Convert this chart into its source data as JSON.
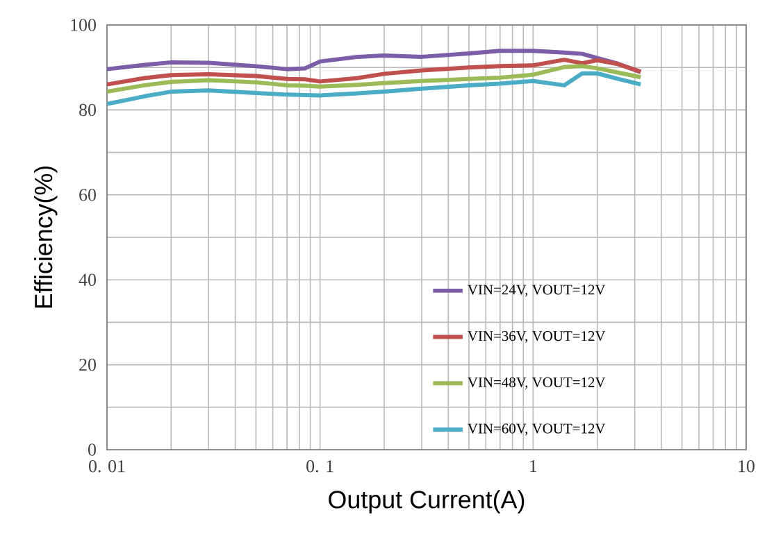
{
  "chart_data": {
    "type": "line",
    "xlabel": "Output Current(A)",
    "ylabel": "Efficiency(%)",
    "log": "x",
    "xlim": [
      0.01,
      10
    ],
    "xticks": [
      {
        "value": 0.01,
        "label": "0. 01"
      },
      {
        "value": 0.1,
        "label": "0. 1"
      },
      1,
      10
    ],
    "ylim": [
      0,
      100
    ],
    "yticks": [
      0,
      {
        "value": 10,
        "label": null
      },
      20,
      {
        "value": 30,
        "label": null
      },
      40,
      {
        "value": 50,
        "label": null
      },
      60,
      {
        "value": 70,
        "label": null
      },
      80,
      {
        "value": 90,
        "label": null
      },
      100
    ],
    "grid": true,
    "legend": "bottom right",
    "marker": "none",
    "line_style": "solid",
    "x": [
      0.01,
      0.015,
      0.02,
      0.03,
      0.05,
      0.07,
      0.085,
      0.1,
      0.15,
      0.2,
      0.3,
      0.5,
      0.7,
      1,
      1.4,
      1.7,
      2,
      2.5,
      3.2
    ],
    "series": [
      {
        "name": "VIN=24V, VOUT=12V",
        "color": "#7b5ea7",
        "values": [
          89.6,
          90.6,
          91.2,
          91.1,
          90.3,
          89.6,
          89.8,
          91.4,
          92.5,
          92.8,
          92.5,
          93.3,
          93.9,
          93.9,
          93.5,
          93.2,
          92.2,
          90.9,
          88.9
        ]
      },
      {
        "name": "VIN=36V, VOUT=12V",
        "color": "#c0504d",
        "values": [
          86,
          87.5,
          88.2,
          88.4,
          88,
          87.3,
          87.2,
          86.7,
          87.5,
          88.5,
          89.3,
          90,
          90.3,
          90.5,
          91.8,
          91,
          91.7,
          90.8,
          89
        ]
      },
      {
        "name": "VIN=48V, VOUT=12V",
        "color": "#9bbb59",
        "values": [
          84.3,
          85.8,
          86.6,
          87,
          86.5,
          85.8,
          85.7,
          85.5,
          85.9,
          86.3,
          86.8,
          87.3,
          87.6,
          88.3,
          90.1,
          90.3,
          89.8,
          88.8,
          87.7
        ]
      },
      {
        "name": "VIN=60V, VOUT=12V",
        "color": "#4bacc6",
        "values": [
          81.4,
          83.2,
          84.3,
          84.6,
          84,
          83.6,
          83.5,
          83.4,
          83.9,
          84.3,
          85,
          85.8,
          86.2,
          86.8,
          85.8,
          88.6,
          88.6,
          87.3,
          86
        ]
      }
    ]
  }
}
